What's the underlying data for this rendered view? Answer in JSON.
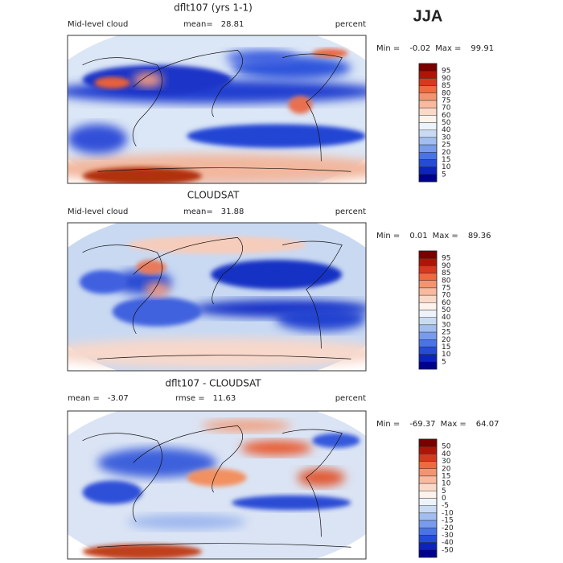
{
  "season": "JJA",
  "panels": [
    {
      "title": "dflt107 (yrs 1-1)",
      "left_label": "Mid-level cloud",
      "stats": [
        {
          "label": "mean=",
          "value": 28.81
        }
      ],
      "units": "percent",
      "min_label": "Min =",
      "min": -0.02,
      "max_label": "Max =",
      "max": 99.91,
      "levels": [
        95,
        90,
        85,
        80,
        75,
        70,
        60,
        50,
        40,
        30,
        25,
        20,
        15,
        10,
        5
      ]
    },
    {
      "title": "CLOUDSAT",
      "left_label": "Mid-level cloud",
      "stats": [
        {
          "label": "mean=",
          "value": 31.88
        }
      ],
      "units": "percent",
      "min_label": "Min =",
      "min": 0.01,
      "max_label": "Max =",
      "max": 89.36,
      "levels": [
        95,
        90,
        85,
        80,
        75,
        70,
        60,
        50,
        40,
        30,
        25,
        20,
        15,
        10,
        5
      ]
    },
    {
      "title": "dflt107 - CLOUDSAT",
      "stats": [
        {
          "label": "mean =",
          "value": -3.07
        },
        {
          "label": "rmse =",
          "value": 11.63
        }
      ],
      "units": "percent",
      "min_label": "Min =",
      "min": -69.37,
      "max_label": "Max =",
      "max": 64.07,
      "levels": [
        50,
        40,
        30,
        20,
        15,
        10,
        5,
        0,
        -5,
        -10,
        -15,
        -20,
        -30,
        -40,
        -50
      ]
    }
  ]
}
